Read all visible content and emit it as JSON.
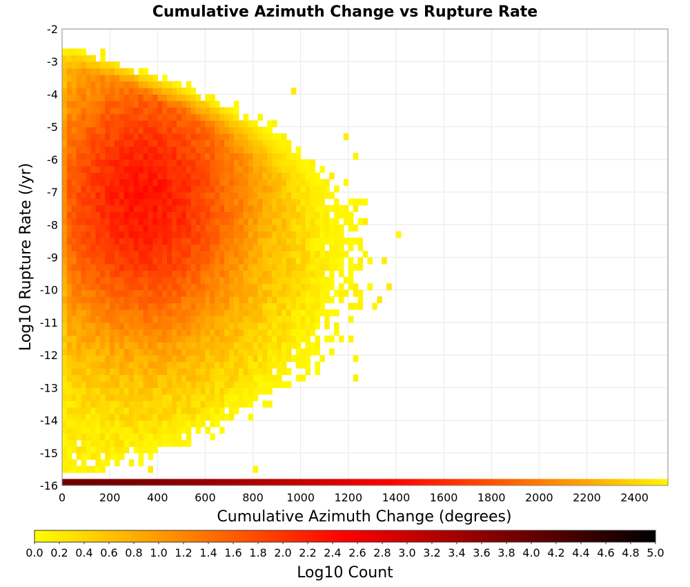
{
  "chart_data": {
    "type": "heatmap",
    "title": "Cumulative Azimuth Change vs Rupture Rate",
    "xlabel": "Cumulative Azimuth Change (degrees)",
    "ylabel": "Log10 Rupture Rate (/yr)",
    "xlim": [
      0,
      2540
    ],
    "ylim": [
      -16,
      -2
    ],
    "x_ticks": [
      0,
      200,
      400,
      600,
      800,
      1000,
      1200,
      1400,
      1600,
      1800,
      2000,
      2200,
      2400
    ],
    "y_ticks": [
      -2,
      -3,
      -4,
      -5,
      -6,
      -7,
      -8,
      -9,
      -10,
      -11,
      -12,
      -13,
      -14,
      -15,
      -16
    ],
    "grid": true,
    "bin_size": {
      "x": 20,
      "y": 0.2
    },
    "colorbar": {
      "label": "Log10 Count",
      "range": [
        0,
        5
      ],
      "ticks": [
        "0.0",
        "0.2",
        "0.4",
        "0.6",
        "0.8",
        "1.0",
        "1.2",
        "1.4",
        "1.6",
        "1.8",
        "2.0",
        "2.2",
        "2.4",
        "2.6",
        "2.8",
        "3.0",
        "3.2",
        "3.4",
        "3.6",
        "3.8",
        "4.0",
        "4.2",
        "4.4",
        "4.6",
        "4.8",
        "5.0"
      ],
      "colors": [
        "#ffff00",
        "#ff8000",
        "#ff0000",
        "#800000",
        "#000000"
      ],
      "placement": "bottom"
    },
    "density_model": {
      "peak_log10_count": 2.3,
      "peak_x": 340,
      "peak_y": -7.2,
      "core_x_extent": [
        0,
        1300
      ],
      "core_y_extent": [
        -15.6,
        -2.6
      ],
      "outliers": [
        [
          1410,
          -8.3
        ],
        [
          1350,
          -9.1
        ],
        [
          1370,
          -9.9
        ],
        [
          1330,
          -10.3
        ],
        [
          1310,
          -10.6
        ],
        [
          1230,
          -6.0
        ],
        [
          1180,
          -5.4
        ],
        [
          1260,
          -7.4
        ],
        [
          1260,
          -8.0
        ],
        [
          1230,
          -12.2
        ],
        [
          1230,
          -12.8
        ],
        [
          960,
          -4.0
        ],
        [
          800,
          -15.6
        ],
        [
          370,
          -15.6
        ]
      ]
    },
    "bottom_row": {
      "y_bin": -15.9,
      "x_range": [
        0,
        2540
      ],
      "log10_count_start": 3.9,
      "log10_count_end": 0.1
    }
  }
}
